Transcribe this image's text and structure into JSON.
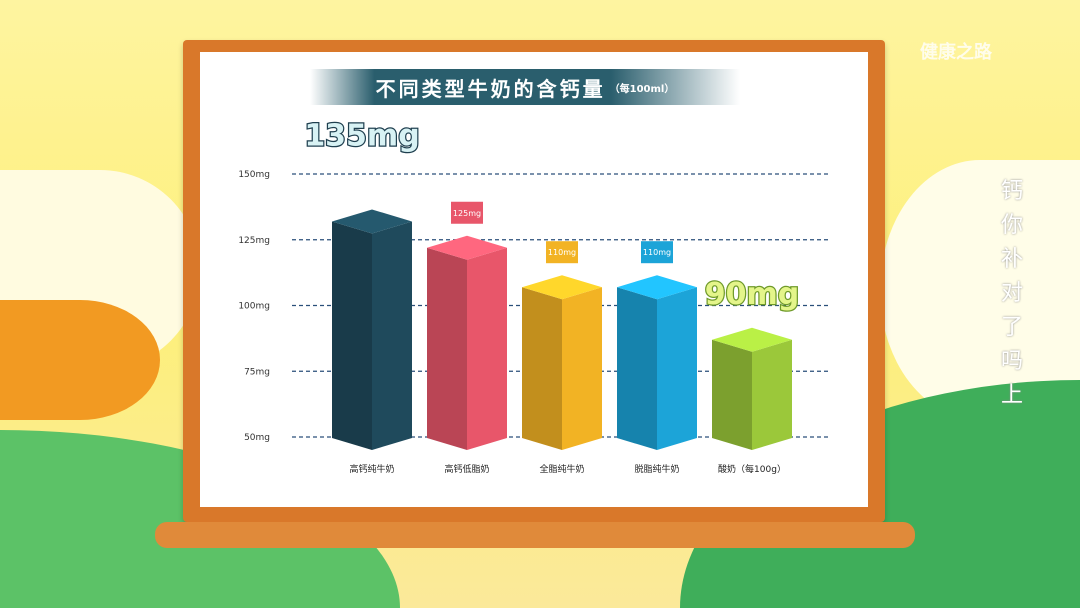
{
  "watermark": "健康之路",
  "side_caption": "钙你补对了吗 上",
  "colors": {
    "bar1": "#1f4a5c",
    "bar2": "#e8566a",
    "bar3": "#f2b324",
    "bar4": "#1ca4d8",
    "bar5": "#9bc83a",
    "frame": "#d9782a"
  },
  "chart_data": {
    "type": "bar",
    "title": "不同类型牛奶的含钙量",
    "subtitle": "（每100ml）",
    "categories": [
      "高钙纯牛奶",
      "高钙低脂奶",
      "全脂纯牛奶",
      "脱脂纯牛奶",
      "酸奶（每100g）"
    ],
    "values": [
      135,
      125,
      110,
      110,
      90
    ],
    "data_labels": [
      "135mg",
      "125mg",
      "110mg",
      "110mg",
      "90mg"
    ],
    "yticks": [
      "50mg",
      "75mg",
      "100mg",
      "125mg",
      "150mg"
    ],
    "ytick_values": [
      50,
      75,
      100,
      125,
      150
    ],
    "ylim": [
      50,
      150
    ],
    "grid": true
  }
}
